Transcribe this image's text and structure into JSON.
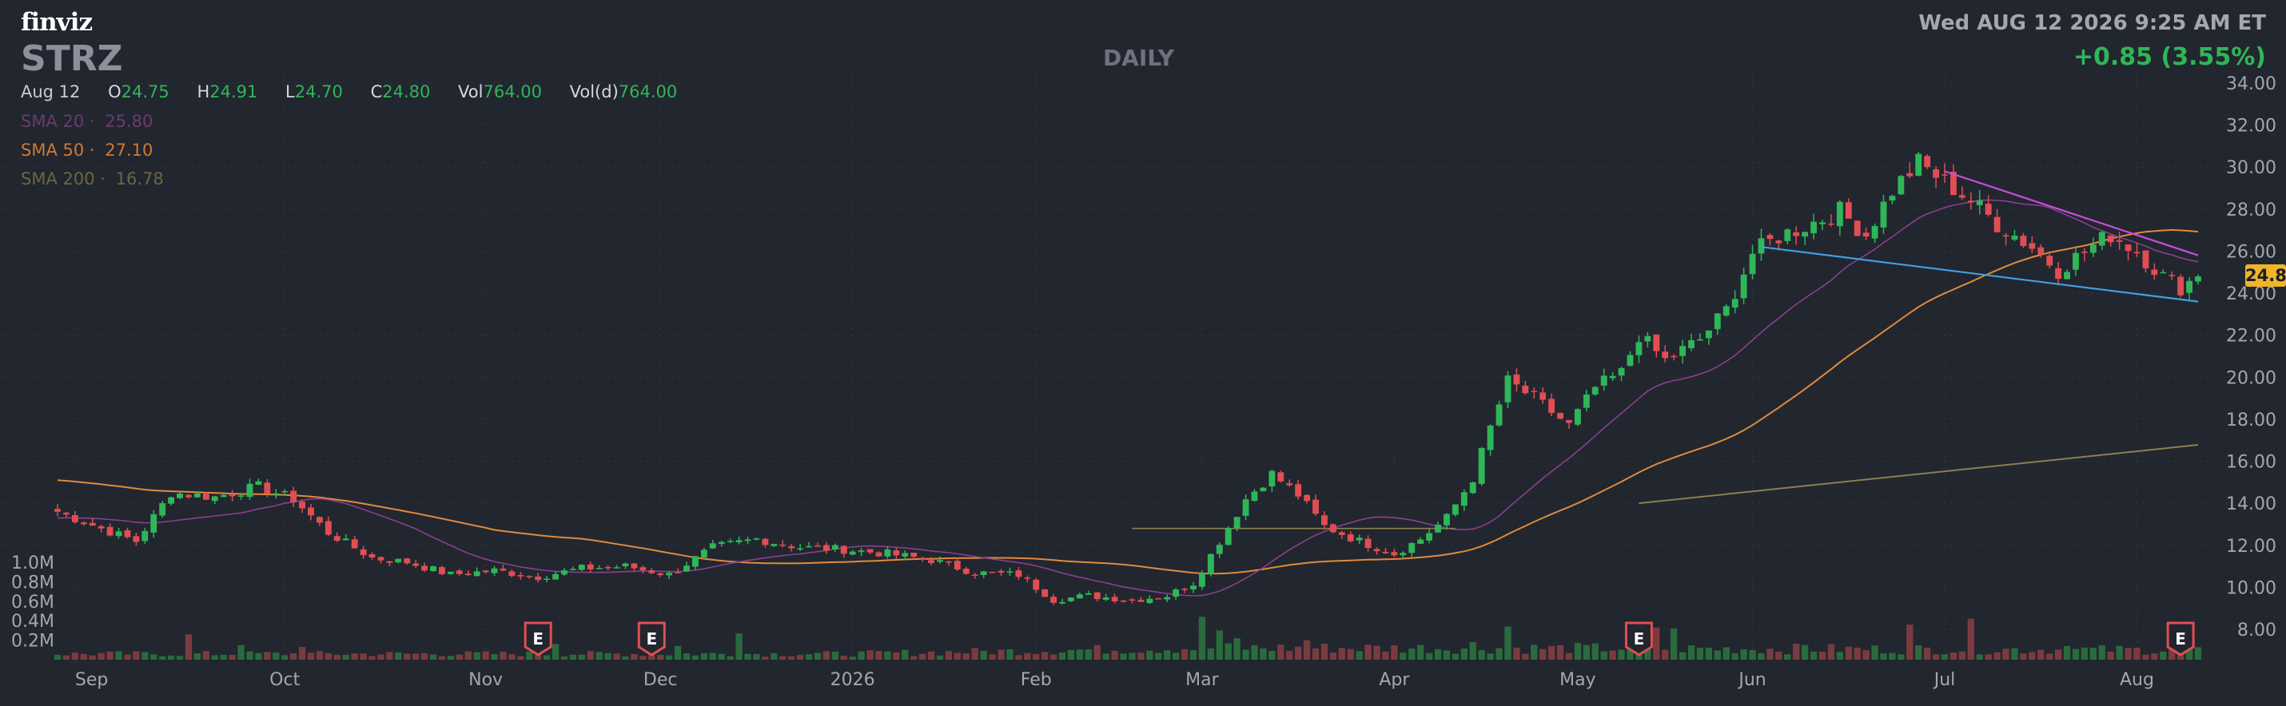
{
  "header": {
    "logo": "finviz",
    "ticker": "STRZ",
    "period": "DAILY",
    "datetime": "Wed AUG 12 2026 9:25 AM ET",
    "change": "+0.85 (3.55%)",
    "ohlc": {
      "date": "Aug 12",
      "open_label": "O",
      "open": "24.75",
      "high_label": "H",
      "high": "24.91",
      "low_label": "L",
      "low": "24.70",
      "close_label": "C",
      "close": "24.80",
      "vol_label": "Vol",
      "vol": "764.00",
      "vold_label": "Vol(d)",
      "vold": "764.00"
    },
    "sma20": {
      "label": "SMA 20",
      "sep": "·",
      "value": "25.80"
    },
    "sma50": {
      "label": "SMA 50",
      "sep": "·",
      "value": "27.10"
    },
    "sma200": {
      "label": "SMA 200",
      "sep": "·",
      "value": "16.78"
    }
  },
  "last_price_tag": "24.80",
  "colors": {
    "background": "#22262f",
    "up": "#2fb658",
    "down": "#e04e53",
    "sma20": "#8a3f91",
    "sma50": "#e08a3c",
    "sma200": "#8a8050",
    "trend_upper": "#c74fd6",
    "trend_lower": "#3fa0e0",
    "grid": "#2e333d",
    "tag": "#f0b429"
  },
  "earnings_marker": "E",
  "chart_data": {
    "type": "candlestick",
    "price_axis": {
      "ticks": [
        "34.00",
        "32.00",
        "30.00",
        "28.00",
        "26.00",
        "24.00",
        "22.00",
        "20.00",
        "18.00",
        "16.00",
        "14.00",
        "12.00",
        "10.00",
        "8.00"
      ],
      "ylim": [
        7.2,
        34.5
      ]
    },
    "volume_axis": {
      "ticks": [
        "1.0M",
        "0.8M",
        "0.6M",
        "0.4M",
        "0.2M"
      ],
      "ylim": [
        0,
        1.1
      ]
    },
    "x_axis": {
      "tick_labels": [
        {
          "label": "Sep",
          "bar": 2
        },
        {
          "label": "Oct",
          "bar": 26
        },
        {
          "label": "Nov",
          "bar": 49
        },
        {
          "label": "Dec",
          "bar": 69
        },
        {
          "label": "2026",
          "bar": 91
        },
        {
          "label": "Feb",
          "bar": 112
        },
        {
          "label": "Mar",
          "bar": 131
        },
        {
          "label": "Apr",
          "bar": 153
        },
        {
          "label": "May",
          "bar": 174
        },
        {
          "label": "Jun",
          "bar": 194
        },
        {
          "label": "Jul",
          "bar": 216
        },
        {
          "label": "Aug",
          "bar": 238
        }
      ]
    },
    "bar_count": 246,
    "anchors": [
      [
        0,
        13.6
      ],
      [
        5,
        12.8
      ],
      [
        9,
        12.2
      ],
      [
        13,
        14.5
      ],
      [
        18,
        14.3
      ],
      [
        23,
        14.8
      ],
      [
        27,
        14.2
      ],
      [
        31,
        12.6
      ],
      [
        36,
        11.4
      ],
      [
        40,
        11.2
      ],
      [
        45,
        10.6
      ],
      [
        50,
        10.8
      ],
      [
        55,
        10.5
      ],
      [
        60,
        10.9
      ],
      [
        65,
        11.0
      ],
      [
        70,
        10.6
      ],
      [
        75,
        11.9
      ],
      [
        80,
        12.3
      ],
      [
        85,
        11.9
      ],
      [
        90,
        11.8
      ],
      [
        95,
        11.6
      ],
      [
        100,
        11.3
      ],
      [
        105,
        10.7
      ],
      [
        110,
        10.6
      ],
      [
        114,
        9.4
      ],
      [
        118,
        9.6
      ],
      [
        123,
        9.4
      ],
      [
        127,
        9.6
      ],
      [
        130,
        10.2
      ],
      [
        133,
        12.2
      ],
      [
        136,
        14.2
      ],
      [
        139,
        15.4
      ],
      [
        142,
        14.4
      ],
      [
        145,
        12.9
      ],
      [
        149,
        12.2
      ],
      [
        153,
        11.6
      ],
      [
        156,
        12.3
      ],
      [
        159,
        13.3
      ],
      [
        162,
        15.2
      ],
      [
        164,
        17.6
      ],
      [
        166,
        19.8
      ],
      [
        169,
        19.0
      ],
      [
        173,
        17.7
      ],
      [
        176,
        19.5
      ],
      [
        179,
        20.2
      ],
      [
        181,
        22.0
      ],
      [
        184,
        20.8
      ],
      [
        188,
        21.8
      ],
      [
        191,
        23.2
      ],
      [
        194,
        25.9
      ],
      [
        197,
        26.7
      ],
      [
        200,
        27.2
      ],
      [
        204,
        27.9
      ],
      [
        207,
        26.8
      ],
      [
        210,
        28.9
      ],
      [
        213,
        30.2
      ],
      [
        216,
        29.3
      ],
      [
        219,
        28.4
      ],
      [
        222,
        27.3
      ],
      [
        226,
        26.2
      ],
      [
        229,
        25.1
      ],
      [
        232,
        26.0
      ],
      [
        235,
        26.8
      ],
      [
        238,
        26.0
      ],
      [
        241,
        24.8
      ],
      [
        243,
        24.3
      ],
      [
        245,
        24.8
      ]
    ],
    "volume_profile": [
      [
        0,
        0.06
      ],
      [
        90,
        0.06
      ],
      [
        130,
        0.12
      ],
      [
        160,
        0.12
      ],
      [
        245,
        0.1
      ]
    ],
    "volume_spikes": [
      {
        "bar": 15,
        "value": 0.26
      },
      {
        "bar": 21,
        "value": 0.15
      },
      {
        "bar": 28,
        "value": 0.13
      },
      {
        "bar": 57,
        "value": 0.16
      },
      {
        "bar": 71,
        "value": 0.14
      },
      {
        "bar": 78,
        "value": 0.27
      },
      {
        "bar": 131,
        "value": 0.44
      },
      {
        "bar": 133,
        "value": 0.3
      },
      {
        "bar": 135,
        "value": 0.22
      },
      {
        "bar": 143,
        "value": 0.2
      },
      {
        "bar": 162,
        "value": 0.18
      },
      {
        "bar": 166,
        "value": 0.34
      },
      {
        "bar": 180,
        "value": 0.14
      },
      {
        "bar": 183,
        "value": 0.33
      },
      {
        "bar": 185,
        "value": 0.32
      },
      {
        "bar": 200,
        "value": 0.15
      },
      {
        "bar": 212,
        "value": 0.36
      },
      {
        "bar": 219,
        "value": 0.42
      },
      {
        "bar": 230,
        "value": 0.14
      },
      {
        "bar": 242,
        "value": 0.13
      }
    ],
    "earnings_bars": [
      55,
      68,
      181
    ],
    "earnings_aug_bar": 243,
    "sma200": {
      "start": [
        181,
        14.0
      ],
      "end": [
        245,
        16.78
      ]
    },
    "sma50_start": 15.1,
    "sma20_color_key": "sma20",
    "trend_lines": [
      {
        "name": "upper",
        "from": [
          216,
          29.8
        ],
        "to": [
          245,
          25.8
        ]
      },
      {
        "name": "lower",
        "from": [
          195,
          26.2
        ],
        "to": [
          245,
          23.6
        ]
      }
    ],
    "support_line": {
      "from": [
        123,
        13.0
      ],
      "to": [
        160,
        12.6
      ],
      "value": 12.8
    }
  }
}
